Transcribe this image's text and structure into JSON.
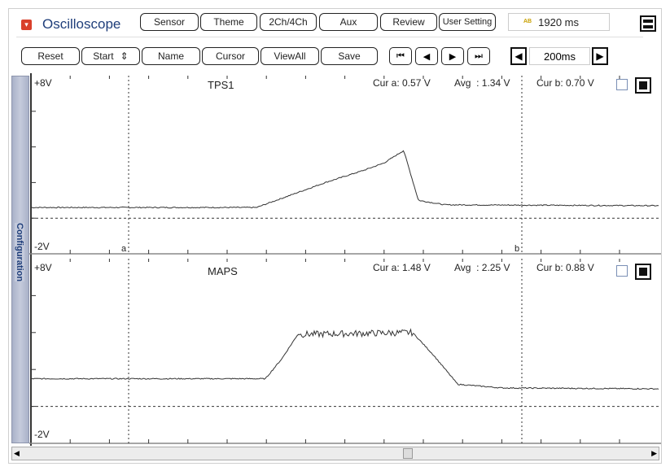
{
  "header": {
    "title": "Oscilloscope",
    "buttons": [
      "Sensor",
      "Theme",
      "2Ch/4Ch",
      "Aux",
      "Review",
      "User Setting"
    ],
    "record_time": "1920 ms",
    "record_icon": "AB"
  },
  "toolbar": {
    "buttons": [
      "Reset",
      "Start",
      "Name",
      "Cursor",
      "ViewAll",
      "Save"
    ],
    "start_icon": "⇕",
    "nav": [
      "⏮",
      "◀",
      "▶",
      "⏭"
    ],
    "time_div": "200ms"
  },
  "sidebar": {
    "label": "Configuration"
  },
  "channels": [
    {
      "name": "TPS1",
      "top": "+8V",
      "bottom": "-2V",
      "cur_a": "Cur a: 0.57 V",
      "avg": "Avg  : 1.34 V",
      "cur_b": "Cur b: 0.70 V"
    },
    {
      "name": "MAPS",
      "top": "+8V",
      "bottom": "-2V",
      "cur_a": "Cur a: 1.48 V",
      "avg": "Avg  : 2.25 V",
      "cur_b": "Cur b: 0.88 V"
    }
  ],
  "cursors": {
    "a": "a",
    "b": "b"
  },
  "colors": {
    "trace": "#333333",
    "accent": "#1f3e7a",
    "logo": "#d9402b"
  },
  "chart_data": [
    {
      "type": "line",
      "title": "TPS1",
      "ylim": [
        -2,
        8
      ],
      "xunit": "ms",
      "ms_per_div": 200,
      "series": [
        {
          "name": "TPS1",
          "points": [
            [
              0,
              0.6
            ],
            [
              1150,
              0.6
            ],
            [
              1300,
              1.2
            ],
            [
              1500,
              2.0
            ],
            [
              1700,
              2.7
            ],
            [
              1800,
              3.1
            ],
            [
              1900,
              3.8
            ],
            [
              1975,
              1.0
            ],
            [
              2110,
              0.75
            ],
            [
              3220,
              0.7
            ]
          ]
        }
      ]
    },
    {
      "type": "line",
      "title": "MAPS",
      "ylim": [
        -2,
        8
      ],
      "xunit": "ms",
      "ms_per_div": 200,
      "series": [
        {
          "name": "MAPS",
          "points": [
            [
              0,
              1.5
            ],
            [
              1195,
              1.5
            ],
            [
              1280,
              2.6
            ],
            [
              1360,
              3.9
            ],
            [
              1945,
              4.0
            ],
            [
              2050,
              2.8
            ],
            [
              2175,
              1.2
            ],
            [
              2400,
              1.0
            ],
            [
              3220,
              0.95
            ]
          ]
        }
      ]
    }
  ]
}
